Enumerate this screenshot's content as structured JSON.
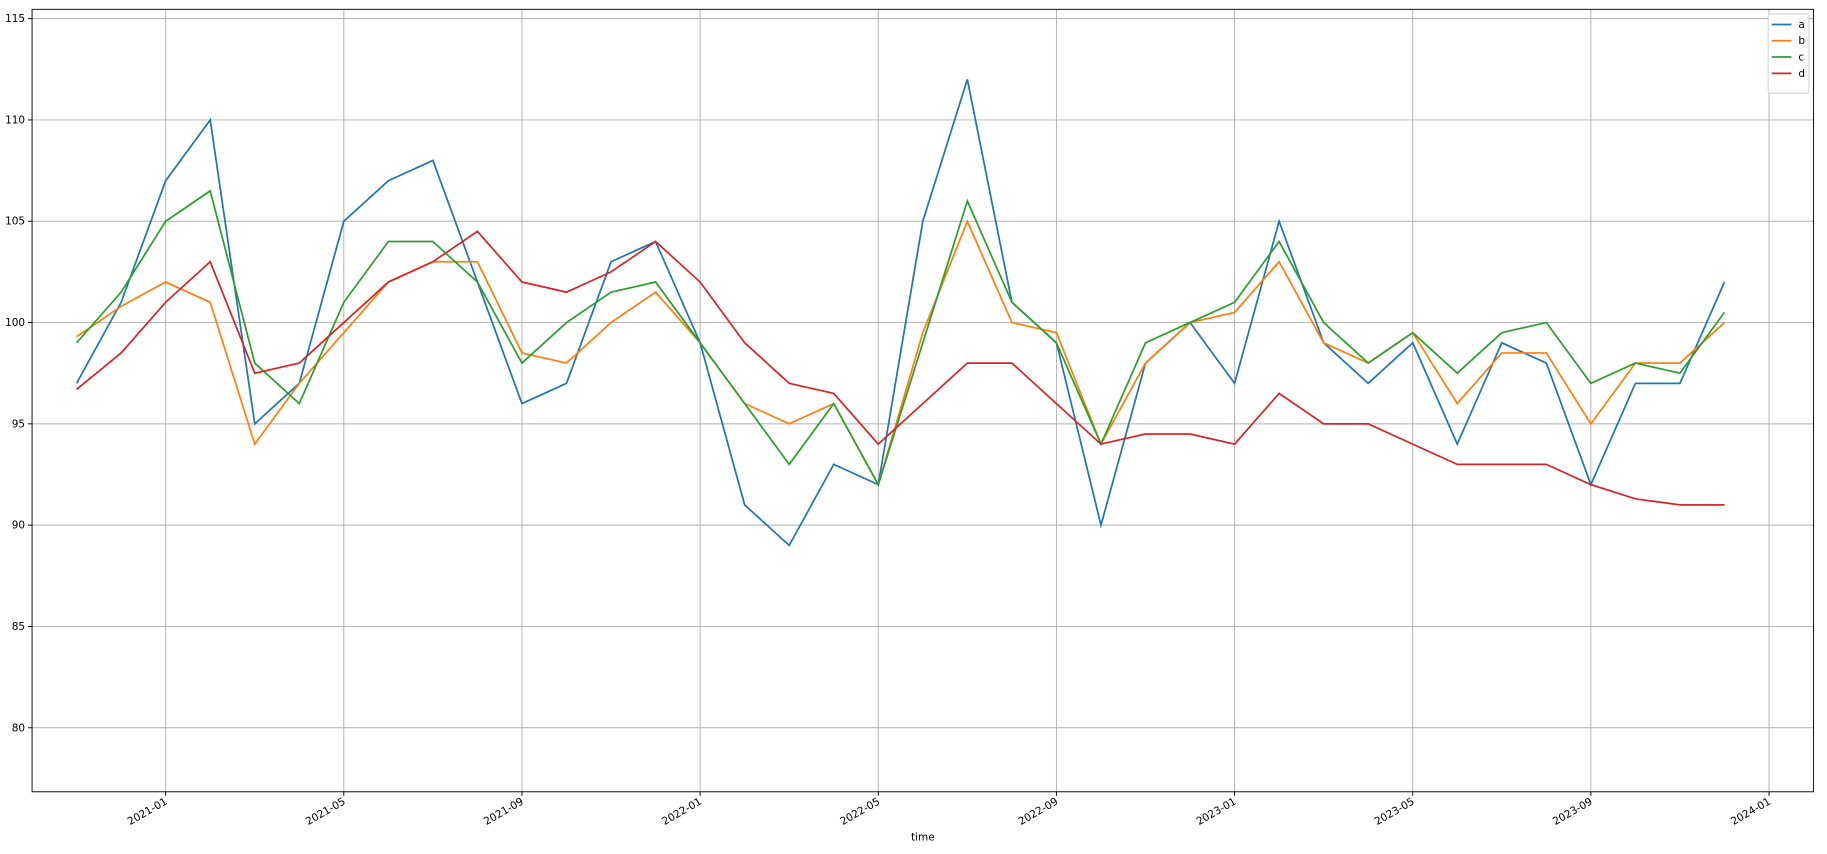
{
  "chart_data": {
    "type": "line",
    "x_label": "time",
    "x": [
      "2020-11",
      "2020-12",
      "2021-01",
      "2021-02",
      "2021-03",
      "2021-04",
      "2021-05",
      "2021-06",
      "2021-07",
      "2021-08",
      "2021-09",
      "2021-10",
      "2021-11",
      "2021-12",
      "2022-01",
      "2022-02",
      "2022-03",
      "2022-04",
      "2022-05",
      "2022-06",
      "2022-07",
      "2022-08",
      "2022-09",
      "2022-10",
      "2022-11",
      "2022-12",
      "2023-01",
      "2023-02",
      "2023-03",
      "2023-04",
      "2023-05",
      "2023-06",
      "2023-07",
      "2023-08",
      "2023-09",
      "2023-10",
      "2023-11",
      "2023-12"
    ],
    "series": [
      {
        "name": "a",
        "color": "#1f77b4",
        "values": [
          97,
          101,
          107,
          110,
          95,
          97,
          105,
          107,
          108,
          102,
          96,
          97,
          103,
          104,
          99,
          91,
          89,
          93,
          92,
          105,
          112,
          101,
          99,
          90,
          98,
          100,
          97,
          105,
          99,
          97,
          99,
          94,
          99,
          98,
          92,
          97,
          97,
          102
        ]
      },
      {
        "name": "b",
        "color": "#ff7f0e",
        "values": [
          99.3,
          100.8,
          102,
          101,
          94,
          97,
          99.5,
          102,
          103,
          103,
          98.5,
          98,
          100,
          101.5,
          99,
          96,
          95,
          96,
          92,
          99.5,
          105,
          100,
          99.5,
          94,
          98,
          100,
          100.5,
          103,
          99,
          98,
          99.5,
          96,
          98.5,
          98.5,
          95,
          98,
          98,
          100
        ]
      },
      {
        "name": "c",
        "color": "#2ca02c",
        "values": [
          99,
          101.5,
          105,
          106.5,
          98,
          96,
          101,
          104,
          104,
          102,
          98,
          100,
          101.5,
          102,
          99,
          96,
          93,
          96,
          92,
          99,
          106,
          101,
          99,
          94,
          99,
          100,
          101,
          104,
          100,
          98,
          99.5,
          97.5,
          99.5,
          100,
          97,
          98,
          97.5,
          100.5
        ]
      },
      {
        "name": "d",
        "color": "#d62728",
        "values": [
          96.7,
          98.5,
          101,
          103,
          97.5,
          98,
          100,
          102,
          103,
          104.5,
          102,
          101.5,
          102.5,
          104,
          102,
          99,
          97,
          96.5,
          94,
          96,
          98,
          98,
          96,
          94,
          94.5,
          94.5,
          94,
          96.5,
          95,
          95,
          94,
          93,
          93,
          93,
          92,
          91.3,
          91,
          91
        ]
      }
    ],
    "xlim": [
      "2020-10",
      "2024-02"
    ],
    "xticks": [
      "2021-01",
      "2021-05",
      "2021-09",
      "2022-01",
      "2022-05",
      "2022-09",
      "2023-01",
      "2023-05",
      "2023-09",
      "2024-01"
    ],
    "ylim": [
      76.84,
      115.46
    ],
    "yticks": [
      80,
      85,
      90,
      95,
      100,
      105,
      110,
      115
    ],
    "grid": true,
    "legend": "upper right"
  }
}
